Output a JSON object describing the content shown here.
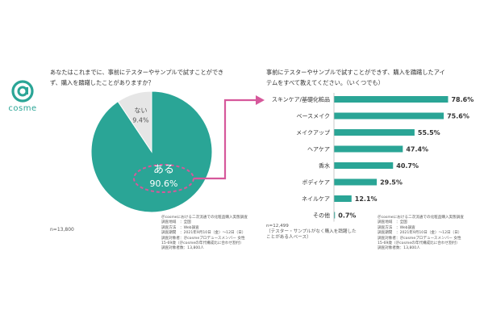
{
  "logo": {
    "brand": "cosme"
  },
  "question1": {
    "line1": "あなたはこれまでに、事前にテスターやサンプルで試すことができ",
    "line2": "ず、購入を躊躇したことがありますか？"
  },
  "question2": {
    "line1": "事前にテスターやサンプルで試すことができず、購入を躊躇したアイ",
    "line2": "テムをすべて教えてください。（いくつでも）"
  },
  "n1": "n=13,800",
  "n2": {
    "line1": "n=12,499",
    "line2": "（テスター・サンプルがなく購入を躊躇した",
    "line3": "ことがある人ベース）"
  },
  "source1": {
    "title": "＠cosmeにおける二次流通での化粧品購入実態調査",
    "lines": [
      "調査地域　：全国",
      "調査方法　：Web調査",
      "調査期間　：2021年9月10日（金）〜12日（日）",
      "調査対象者：＠cosmeプロデュースメンバー 女性",
      "15-69歳（＠cosmeの年代構成比に合わせ割付）",
      "調査対象者数：13,800人"
    ]
  },
  "source2": {
    "title": "＠cosmeにおける二次流通での化粧品購入実態調査",
    "lines": [
      "調査地域　：全国",
      "調査方法　：Web調査",
      "調査期間　：2021年9月10日（金）〜12日（日）",
      "調査対象者：＠cosmeプロデュースメンバー 女性",
      "15-69歳（＠cosmeの年代構成比に合わせ割付）",
      "調査対象者数：13,800人"
    ]
  },
  "colors": {
    "teal": "#2aa596",
    "grey": "#e6e6e6",
    "pink": "#d6589b"
  },
  "chart_data": [
    {
      "type": "pie",
      "slices": [
        {
          "label": "ある",
          "value": 90.6,
          "display": "90.6%",
          "color": "#2aa596"
        },
        {
          "label": "ない",
          "value": 9.4,
          "display": "9.4%",
          "color": "#e6e6e6"
        }
      ]
    },
    {
      "type": "bar",
      "orientation": "horizontal",
      "categories": [
        "スキンケア/基礎化粧品",
        "ベースメイク",
        "メイクアップ",
        "ヘアケア",
        "香水",
        "ボディケア",
        "ネイルケア",
        "その他"
      ],
      "values": [
        78.6,
        75.6,
        55.5,
        47.4,
        40.7,
        29.5,
        12.1,
        0.7
      ],
      "labels": [
        "78.6%",
        "75.6%",
        "55.5%",
        "47.4%",
        "40.7%",
        "29.5%",
        "12.1%",
        "0.7%"
      ],
      "color": "#2aa596",
      "xlim": [
        0,
        100
      ]
    }
  ]
}
